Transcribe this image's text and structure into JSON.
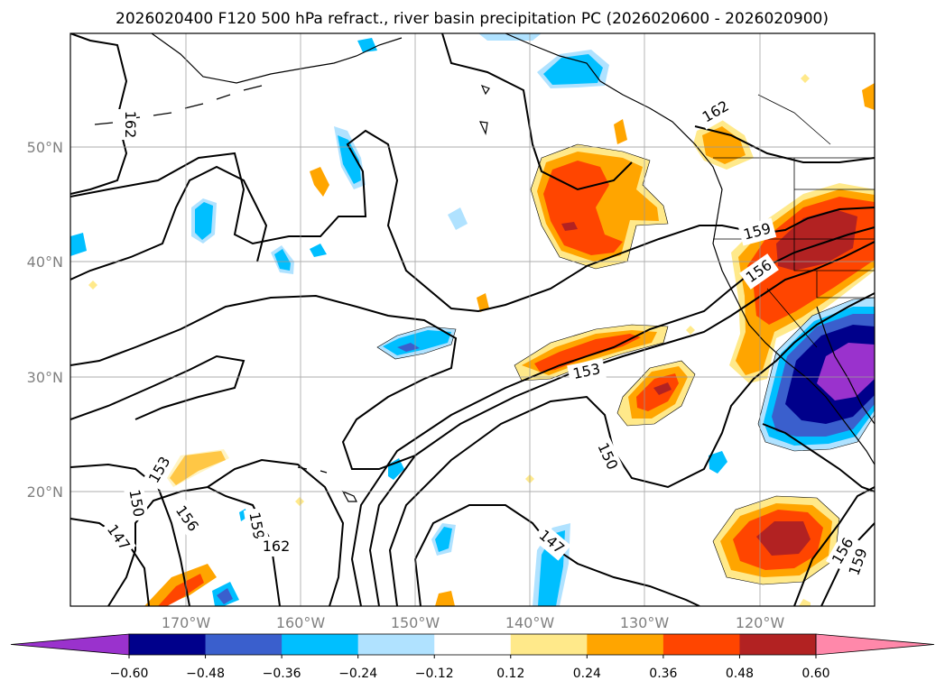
{
  "title": "2026020400 F120 500 hPa refract., river basin precipitation PC (2026020600 - 2026020900)",
  "chart_data": {
    "type": "map",
    "lat_ticks": [
      "50°N",
      "40°N",
      "30°N",
      "20°N"
    ],
    "lon_ticks": [
      "170°W",
      "160°W",
      "150°W",
      "140°W",
      "130°W",
      "120°W"
    ],
    "colorbar": {
      "ticks": [
        "−0.60",
        "−0.48",
        "−0.36",
        "−0.24",
        "−0.12",
        "0.12",
        "0.24",
        "0.36",
        "0.48",
        "0.60"
      ],
      "colors": [
        "#9a32cd",
        "#00008b",
        "#3a5fcd",
        "#00bfff",
        "#b0e2ff",
        "#ffffff",
        "#ffe98a",
        "#ffa500",
        "#ff4500",
        "#b22222",
        "#ff88aa"
      ]
    },
    "contour_labels": [
      "162",
      "162",
      "159",
      "156",
      "153",
      "150",
      "147",
      "153",
      "150",
      "147",
      "156",
      "159",
      "162",
      "156",
      "159"
    ],
    "grid": true
  }
}
